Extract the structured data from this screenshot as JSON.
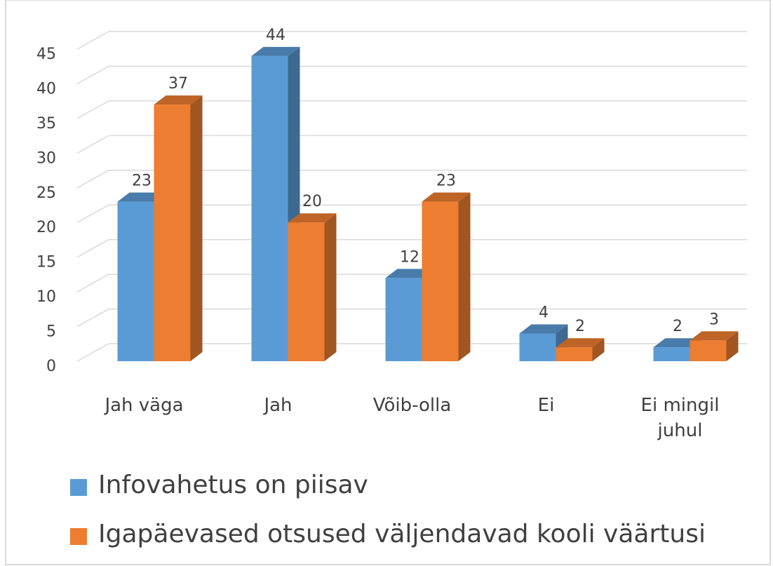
{
  "chart_data": {
    "type": "bar3d",
    "categories": [
      "Jah väga",
      "Jah",
      "Võib-olla",
      "Ei",
      "Ei mingil juhul"
    ],
    "series": [
      {
        "name": "Infovahetus on piisav",
        "color": "#5b9bd5",
        "values": [
          23,
          44,
          12,
          4,
          2
        ]
      },
      {
        "name": "Igapäevased otsused väljendavad kooli väärtusi",
        "color": "#ed7d31",
        "values": [
          37,
          20,
          23,
          2,
          3
        ]
      }
    ],
    "ylim": [
      0,
      45
    ],
    "yticks": [
      0,
      5,
      10,
      15,
      20,
      25,
      30,
      35,
      40,
      45
    ],
    "grid": true,
    "legend": "bottom"
  }
}
